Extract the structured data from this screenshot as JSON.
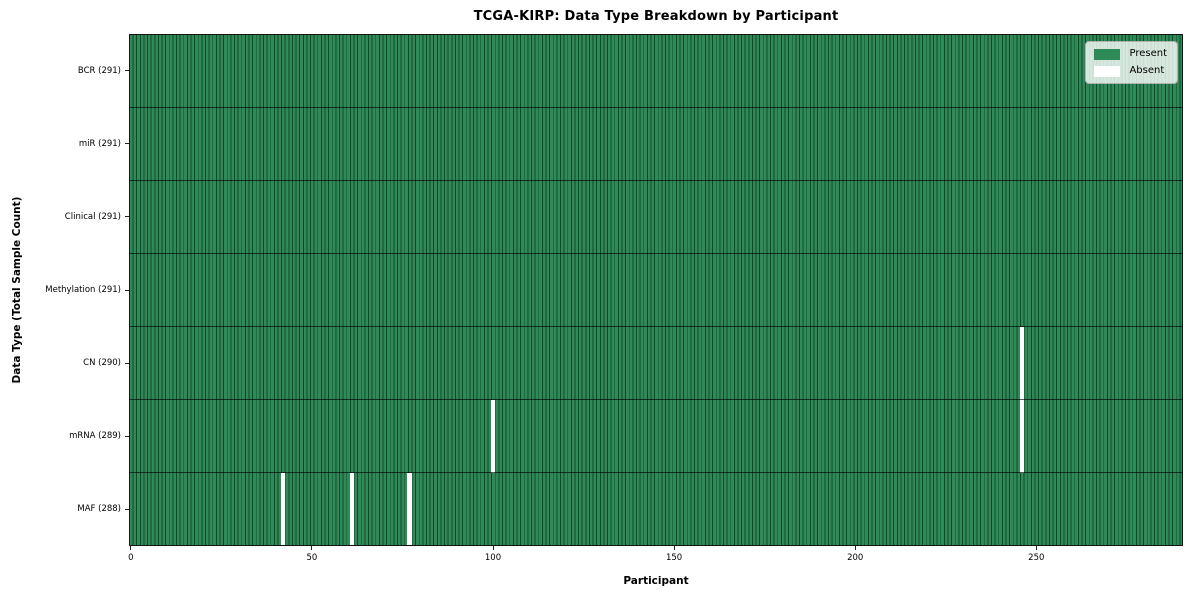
{
  "figure": {
    "background": "#ffffff"
  },
  "chart_data": {
    "type": "heatmap",
    "title": "TCGA-KIRP: Data Type Breakdown by Participant",
    "xlabel": "Participant",
    "ylabel": "Data Type (Total Sample Count)",
    "x_ticks": [
      0,
      50,
      100,
      150,
      200,
      250
    ],
    "xlim": [
      -0.5,
      290.5
    ],
    "n_participants": 291,
    "grid": "cell-edges",
    "legend": {
      "position": "upper-right",
      "entries": [
        {
          "label": "Present",
          "color": "#2e8b57"
        },
        {
          "label": "Absent",
          "color": "#ffffff"
        }
      ]
    },
    "rows": [
      {
        "label": "BCR (291)",
        "name": "BCR",
        "present_count": 291,
        "absent_participants": []
      },
      {
        "label": "miR (291)",
        "name": "miR",
        "present_count": 291,
        "absent_participants": []
      },
      {
        "label": "Clinical (291)",
        "name": "Clinical",
        "present_count": 291,
        "absent_participants": []
      },
      {
        "label": "Methylation (291)",
        "name": "Methylation",
        "present_count": 291,
        "absent_participants": []
      },
      {
        "label": "CN (290)",
        "name": "CN",
        "present_count": 290,
        "absent_participants": [
          246
        ]
      },
      {
        "label": "mRNA (289)",
        "name": "mRNA",
        "present_count": 289,
        "absent_participants": [
          100,
          246
        ]
      },
      {
        "label": "MAF (288)",
        "name": "MAF",
        "present_count": 288,
        "absent_participants": [
          42,
          61,
          77
        ]
      }
    ],
    "colors": {
      "present": "#2e8b57",
      "absent": "#ffffff",
      "cell_edge": "rgba(0,0,0,0.5)",
      "row_divider": "rgba(0,0,0,0.65)",
      "spine": "#141414"
    }
  }
}
